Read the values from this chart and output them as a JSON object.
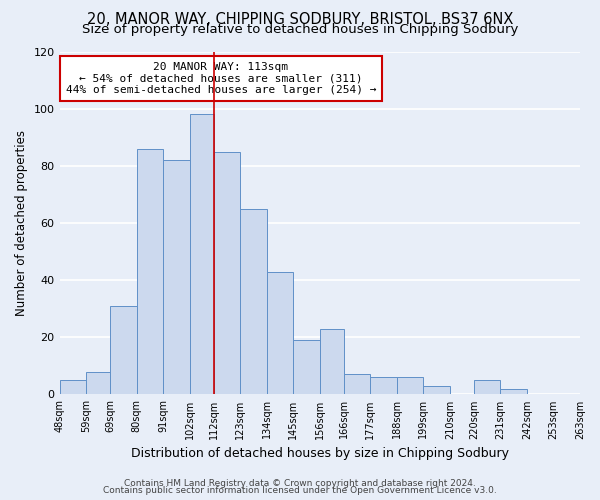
{
  "title1": "20, MANOR WAY, CHIPPING SODBURY, BRISTOL, BS37 6NX",
  "title2": "Size of property relative to detached houses in Chipping Sodbury",
  "xlabel": "Distribution of detached houses by size in Chipping Sodbury",
  "ylabel": "Number of detached properties",
  "bar_left_edges": [
    48,
    59,
    69,
    80,
    91,
    102,
    112,
    123,
    134,
    145,
    156,
    166,
    177,
    188,
    199,
    210,
    220,
    231,
    242,
    253
  ],
  "bar_heights": [
    5,
    8,
    31,
    86,
    82,
    98,
    85,
    65,
    43,
    19,
    23,
    7,
    6,
    6,
    3,
    0,
    5,
    2,
    0,
    0
  ],
  "bar_color": "#ccd9ee",
  "bar_edge_color": "#6090c8",
  "vline_x": 112,
  "vline_color": "#cc0000",
  "annotation_line1": "20 MANOR WAY: 113sqm",
  "annotation_line2": "← 54% of detached houses are smaller (311)",
  "annotation_line3": "44% of semi-detached houses are larger (254) →",
  "annotation_box_color": "white",
  "annotation_box_edge": "#cc0000",
  "ylim": [
    0,
    120
  ],
  "yticks": [
    0,
    20,
    40,
    60,
    80,
    100,
    120
  ],
  "xtick_labels": [
    "48sqm",
    "59sqm",
    "69sqm",
    "80sqm",
    "91sqm",
    "102sqm",
    "112sqm",
    "123sqm",
    "134sqm",
    "145sqm",
    "156sqm",
    "166sqm",
    "177sqm",
    "188sqm",
    "199sqm",
    "210sqm",
    "220sqm",
    "231sqm",
    "242sqm",
    "253sqm",
    "263sqm"
  ],
  "footer1": "Contains HM Land Registry data © Crown copyright and database right 2024.",
  "footer2": "Contains public sector information licensed under the Open Government Licence v3.0.",
  "background_color": "#e8eef8",
  "grid_color": "white",
  "title1_fontsize": 10.5,
  "title2_fontsize": 9.5,
  "xlabel_fontsize": 9,
  "ylabel_fontsize": 8.5,
  "footer_fontsize": 6.5,
  "tick_fontsize": 7,
  "ytick_fontsize": 8
}
